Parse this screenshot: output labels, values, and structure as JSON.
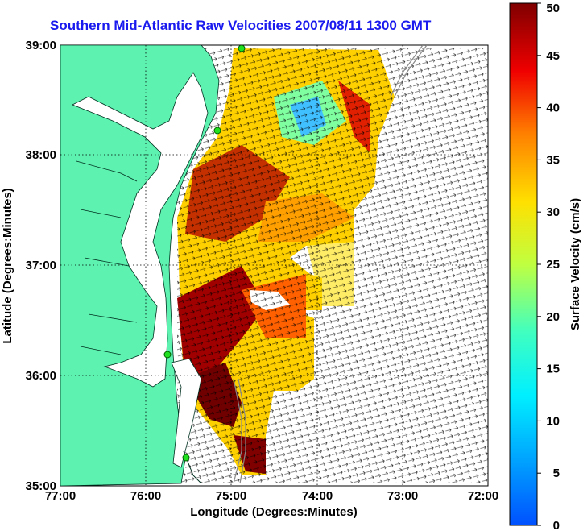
{
  "title": "Southern Mid-Atlantic Raw Velocities 2007/08/11 1300 GMT",
  "map": {
    "x_axis": {
      "label": "Longitude (Degrees:Minutes)",
      "ticks": [
        "77:00",
        "76:00",
        "75:00",
        "74:00",
        "73:00",
        "72:00"
      ]
    },
    "y_axis": {
      "label": "Latitude (Degrees:Minutes)",
      "ticks": [
        "39:00",
        "38:00",
        "37:00",
        "36:00",
        "35:00"
      ]
    },
    "land_color": "#5ef2b0",
    "grid": "dotted"
  },
  "colorbar": {
    "label": "Surface Velocity (cm/s)",
    "ticks": [
      "50",
      "45",
      "40",
      "35",
      "30",
      "25",
      "20",
      "15",
      "10",
      "5",
      "0"
    ],
    "colormap": "jet"
  }
}
